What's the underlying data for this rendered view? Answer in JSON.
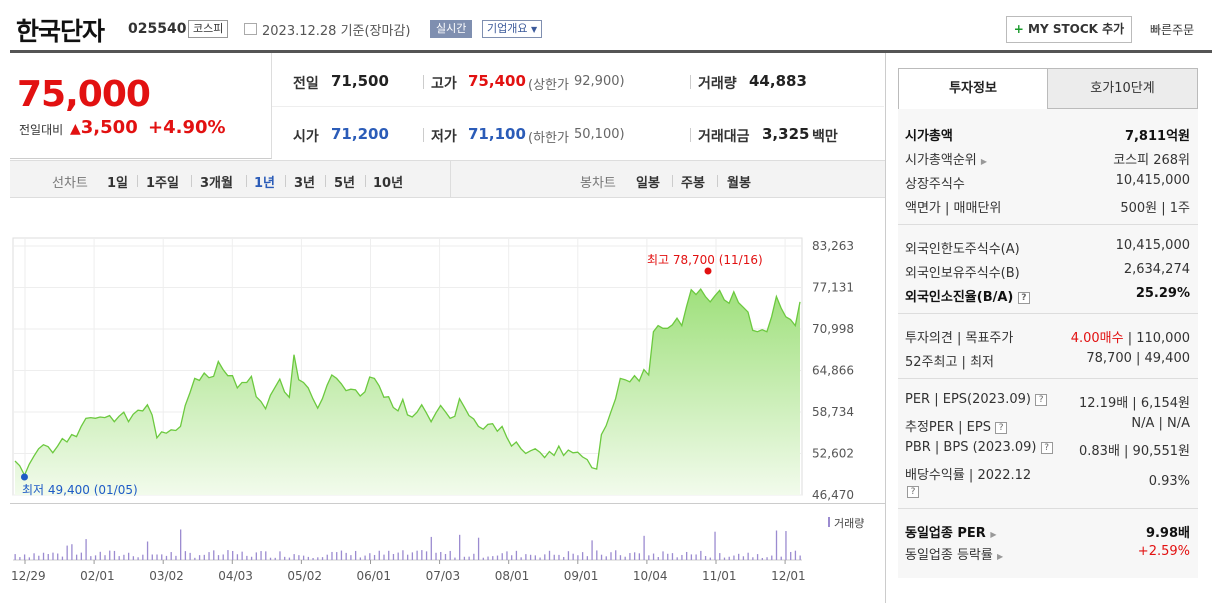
{
  "header": {
    "company": "한국단자",
    "code": "025540",
    "market_badge": "코스피",
    "date_text": "2023.12.28 기준(장마감)",
    "realtime": "실시간",
    "company_info": "기업개요",
    "mystock": "MY STOCK 추가",
    "quick_order": "빠른주문"
  },
  "price": {
    "current": "75,000",
    "diff_label": "전일대비",
    "diff_amount": "3,500",
    "diff_percent": "+4.90%"
  },
  "summary": {
    "prev_label": "전일",
    "prev": "71,500",
    "high_label": "고가",
    "high": "75,400",
    "upper_label": "(상한가",
    "upper": "92,900)",
    "volume_label": "거래량",
    "volume": "44,883",
    "open_label": "시가",
    "open": "71,200",
    "low_label": "저가",
    "low": "71,100",
    "lower_label": "(하한가",
    "lower": "50,100)",
    "amount_label": "거래대금",
    "amount": "3,325",
    "amount_unit": "백만"
  },
  "period_tabs": {
    "line_label": "선차트",
    "items": [
      "1일",
      "1주일",
      "3개월",
      "1년",
      "3년",
      "5년",
      "10년"
    ],
    "active": "1년",
    "candle_label": "봉차트",
    "candle_items": [
      "일봉",
      "주봉",
      "월봉"
    ]
  },
  "chart_data": {
    "type": "area",
    "y_ticks": [
      "83,263",
      "77,131",
      "70,998",
      "64,866",
      "58,734",
      "52,602",
      "46,470"
    ],
    "ylim": [
      46470,
      83263
    ],
    "x_ticks": [
      "12/29",
      "02/01",
      "03/02",
      "04/03",
      "05/02",
      "06/01",
      "07/03",
      "08/01",
      "09/01",
      "10/04",
      "11/01",
      "12/01"
    ],
    "high_annotation": "최고 78,700 (11/16)",
    "low_annotation": "최저 49,400 (01/05)",
    "volume_legend": "거래량",
    "values": [
      51500,
      50800,
      49400,
      51000,
      52200,
      53300,
      53900,
      53600,
      52700,
      53700,
      54800,
      54300,
      55400,
      55100,
      56600,
      57800,
      57900,
      57800,
      58000,
      57900,
      58200,
      57300,
      58100,
      58700,
      57300,
      58400,
      59000,
      58900,
      59800,
      58300,
      54900,
      55800,
      55600,
      56100,
      56000,
      56600,
      59700,
      61600,
      63700,
      63400,
      64500,
      63800,
      64000,
      66200,
      65000,
      64100,
      64100,
      62300,
      63100,
      63100,
      64000,
      61000,
      60300,
      59200,
      61200,
      62400,
      63600,
      61700,
      60900,
      67200,
      63500,
      63100,
      62300,
      60700,
      59300,
      60700,
      62700,
      64200,
      63700,
      62900,
      61900,
      62100,
      62000,
      61100,
      61700,
      63900,
      63700,
      62600,
      60900,
      61000,
      59400,
      58900,
      60600,
      58300,
      58000,
      58700,
      59800,
      58600,
      57300,
      58600,
      59700,
      58800,
      57800,
      58100,
      60700,
      59500,
      58200,
      57700,
      56600,
      56200,
      56900,
      57000,
      55900,
      56600,
      55000,
      53700,
      54300,
      53300,
      52600,
      53000,
      53300,
      52800,
      52000,
      52900,
      52300,
      53700,
      52300,
      53100,
      52700,
      52800,
      52100,
      51700,
      50500,
      50300,
      55400,
      56700,
      58700,
      60700,
      63700,
      63500,
      63200,
      64100,
      63300,
      65000,
      64200,
      70600,
      71500,
      71100,
      71100,
      71600,
      72600,
      71500,
      74300,
      76800,
      76100,
      76900,
      75800,
      75000,
      75900,
      76700,
      75300,
      74800,
      76500,
      74900,
      74200,
      73500,
      70800,
      70600,
      70900,
      70600,
      72800,
      75800,
      74100,
      72800,
      72400,
      71500,
      75000
    ]
  },
  "info_tabs": {
    "active": "투자정보",
    "inactive": "호가10단계"
  },
  "info": {
    "g1": [
      {
        "label": "시가총액",
        "value": "7,811억원"
      },
      {
        "label": "시가총액순위",
        "value": "코스피 268위"
      },
      {
        "label": "상장주식수",
        "value": "10,415,000"
      },
      {
        "label": "액면가 | 매매단위",
        "value": "500원 | 1주"
      }
    ],
    "g2": [
      {
        "label": "외국인한도주식수(A)",
        "value": "10,415,000"
      },
      {
        "label": "외국인보유주식수(B)",
        "value": "2,634,274"
      },
      {
        "label": "외국인소진율(B/A)",
        "value": "25.29%"
      }
    ],
    "g3": [
      {
        "label": "투자의견 | 목표주가",
        "value_red": "4.00매수",
        "value": "| 110,000"
      },
      {
        "label": "52주최고 | 최저",
        "value": "78,700 | 49,400"
      }
    ],
    "g4": [
      {
        "label": "PER | EPS(2023.09)",
        "value": "12.19배 | 6,154원"
      },
      {
        "label": "추정PER | EPS",
        "value": "N/A | N/A"
      },
      {
        "label": "PBR | BPS (2023.09)",
        "value": "0.83배 | 90,551원"
      },
      {
        "label": "배당수익률 | 2022.12",
        "value": "0.93%"
      }
    ],
    "g5": [
      {
        "label": "동일업종 PER",
        "value": "9.98배"
      },
      {
        "label": "동일업종 등락률",
        "value": "+2.59%"
      }
    ]
  }
}
